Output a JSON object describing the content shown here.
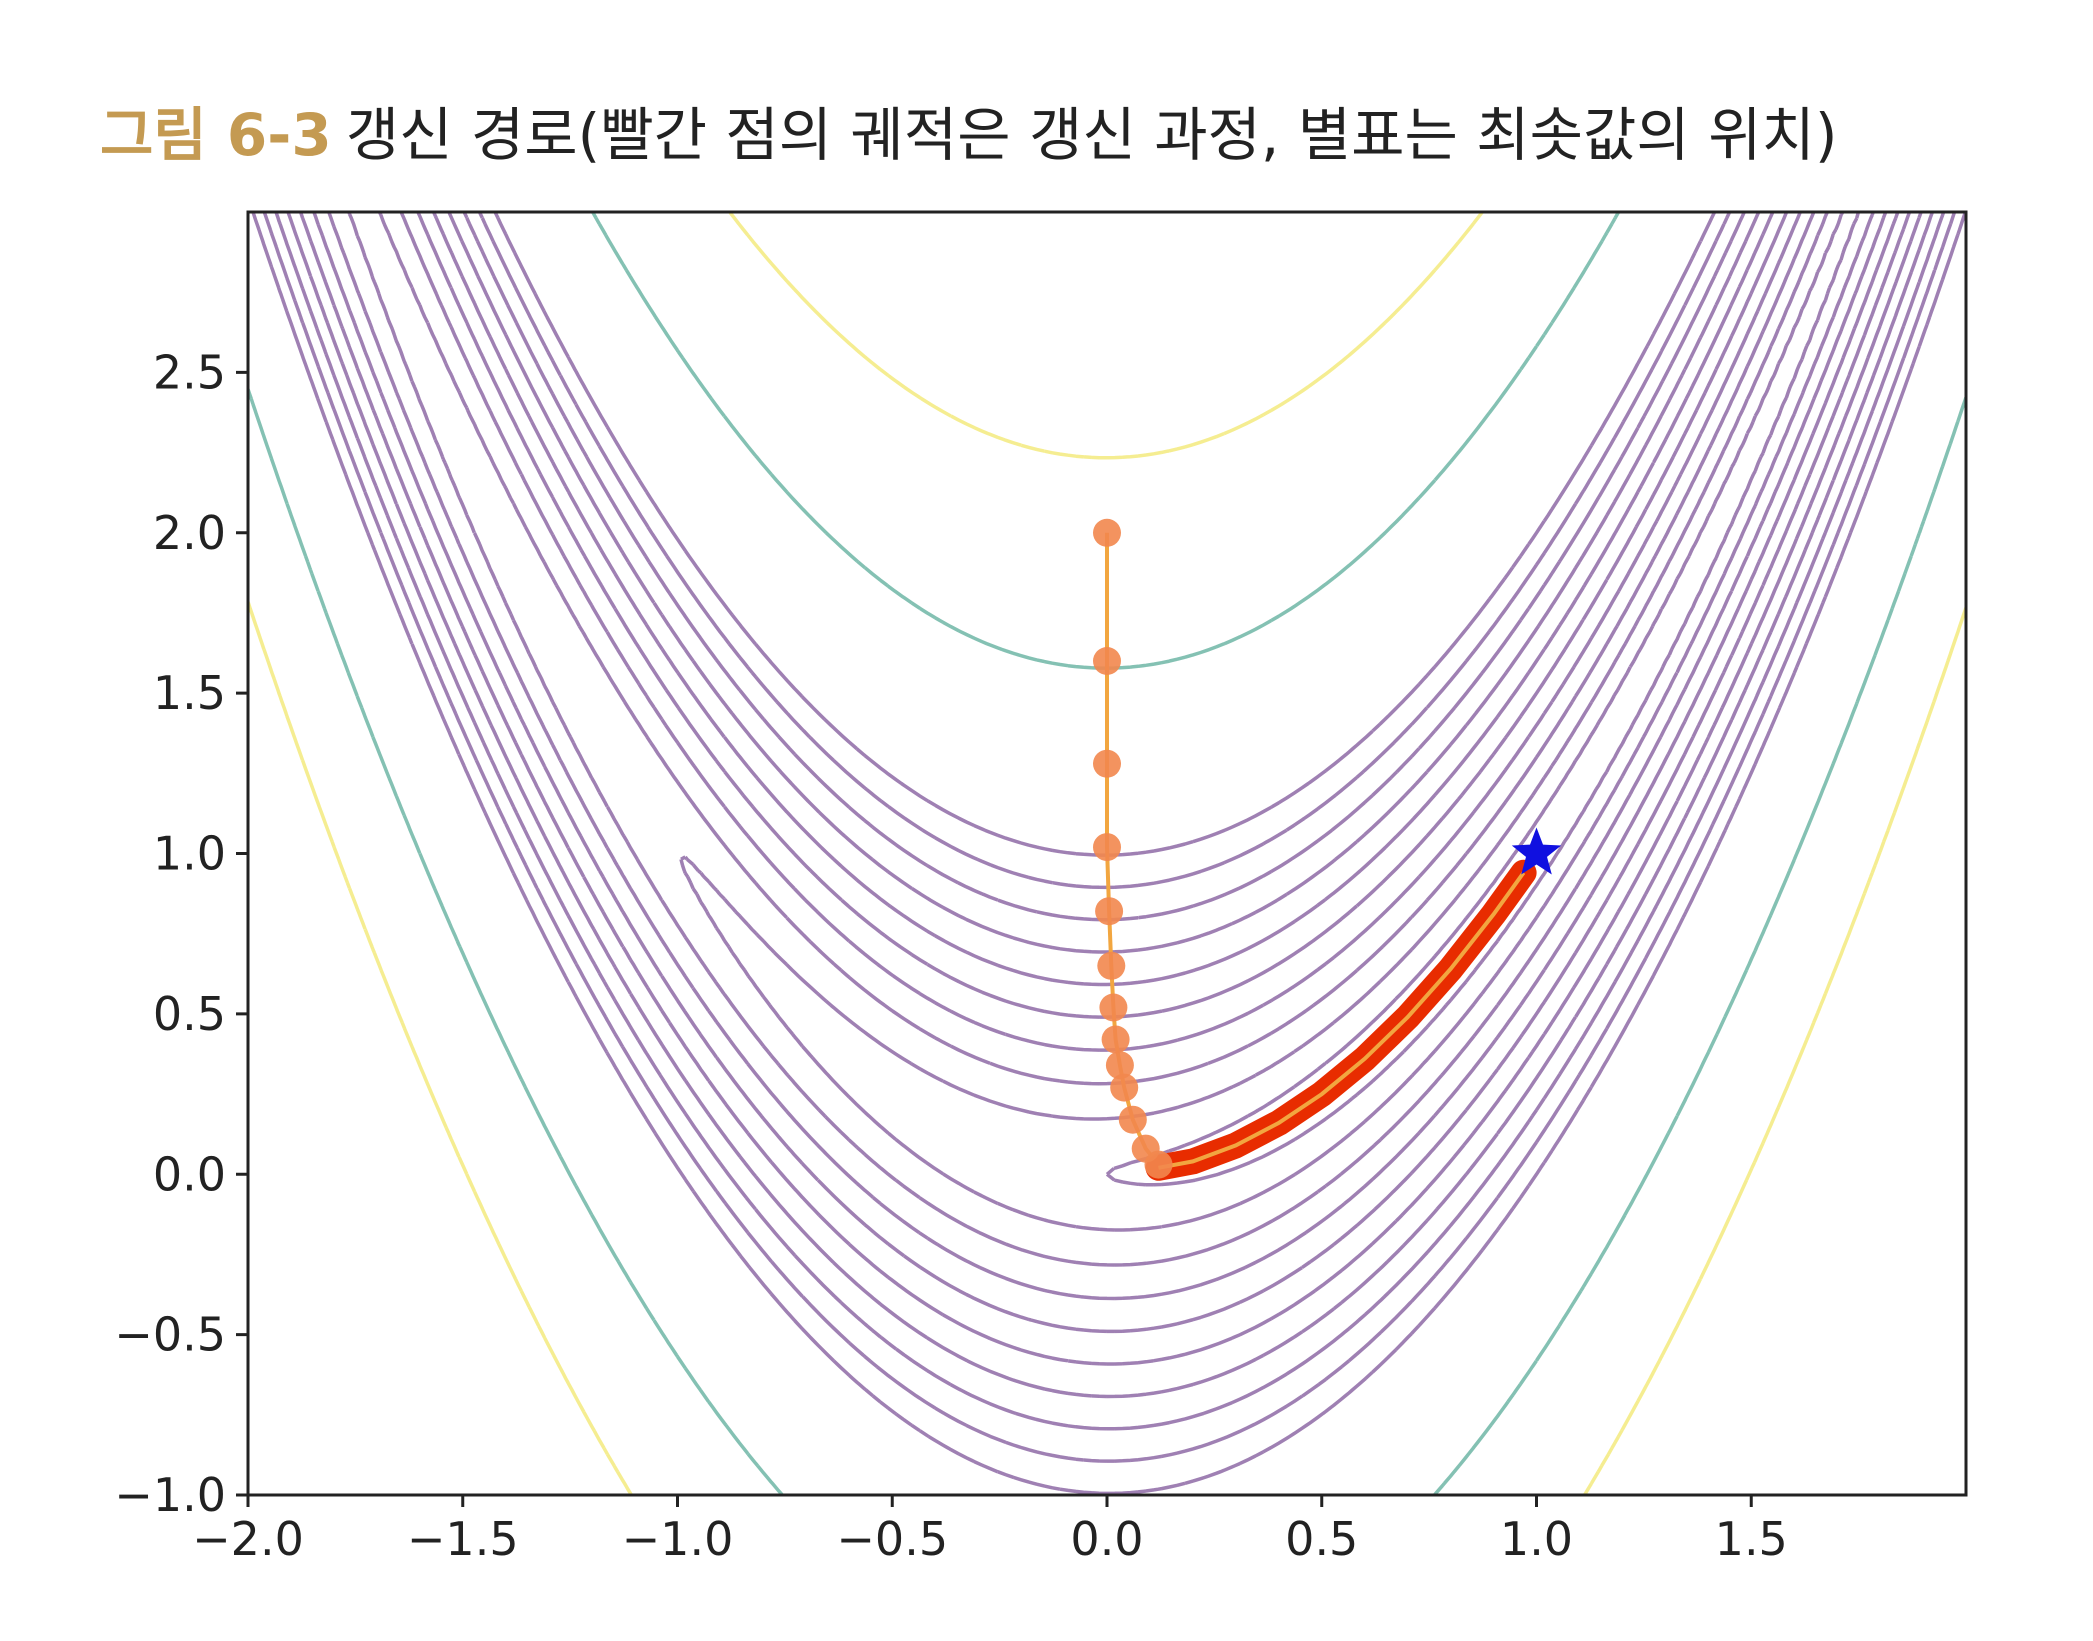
{
  "caption": {
    "figure_label": "그림 6-3",
    "text": "갱신 경로(빨간 점의 궤적은 갱신 과정, 별표는 최솟값의 위치)"
  },
  "chart_data": {
    "type": "contour",
    "function": "rosenbrock",
    "xlim": [
      -2.0,
      2.0
    ],
    "ylim": [
      -1.0,
      3.0
    ],
    "grid": false,
    "x_ticks": [
      "−2.0",
      "−1.5",
      "−1.0",
      "−0.5",
      "0.0",
      "0.5",
      "1.0",
      "1.5"
    ],
    "y_ticks": [
      "−1.0",
      "−0.5",
      "0.0",
      "0.5",
      "1.0",
      "1.5",
      "2.0",
      "2.5"
    ],
    "x_tick_values": [
      -2.0,
      -1.5,
      -1.0,
      -0.5,
      0.0,
      0.5,
      1.0,
      1.5
    ],
    "y_tick_values": [
      -1.0,
      -0.5,
      0.0,
      0.5,
      1.0,
      1.5,
      2.0,
      2.5
    ],
    "contour_levels": [
      1,
      4,
      9,
      16,
      25,
      36,
      49,
      64,
      81,
      100,
      250,
      500
    ],
    "contour_colors": {
      "low": "#8e6aa6",
      "mid": "#6fb6a6",
      "high": "#f3ea7e"
    },
    "path_color": "#f2874e",
    "path_line_color": "#f2a640",
    "converged_color": "#e82c00",
    "start_point": [
      0.0,
      2.0
    ],
    "path_points": [
      [
        0.0,
        2.0
      ],
      [
        0.0,
        1.6
      ],
      [
        0.0,
        1.28
      ],
      [
        0.0,
        1.02
      ],
      [
        0.005,
        0.82
      ],
      [
        0.01,
        0.65
      ],
      [
        0.015,
        0.52
      ],
      [
        0.02,
        0.42
      ],
      [
        0.03,
        0.34
      ],
      [
        0.04,
        0.27
      ],
      [
        0.06,
        0.17
      ],
      [
        0.09,
        0.08
      ],
      [
        0.12,
        0.03
      ]
    ],
    "converged_path": [
      [
        0.12,
        0.02
      ],
      [
        0.2,
        0.04
      ],
      [
        0.3,
        0.09
      ],
      [
        0.4,
        0.16
      ],
      [
        0.5,
        0.25
      ],
      [
        0.6,
        0.36
      ],
      [
        0.7,
        0.49
      ],
      [
        0.8,
        0.64
      ],
      [
        0.9,
        0.81
      ],
      [
        0.97,
        0.94
      ]
    ],
    "minimum": {
      "x": 1.0,
      "y": 1.0,
      "marker": "star",
      "color": "#1010e0"
    }
  }
}
